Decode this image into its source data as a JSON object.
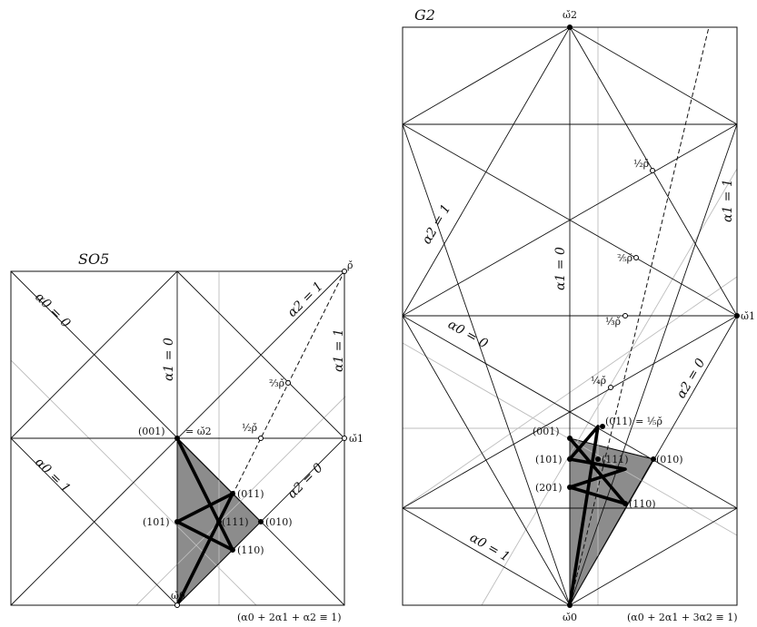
{
  "left_panel": {
    "title": "SO5",
    "lines": {
      "alpha0_0": "α0 = 0",
      "alpha0_1": "α0 = 1",
      "alpha1_0": "α1 = 0",
      "alpha1_1": "α1 = 1",
      "alpha2_1": "α2 = 1",
      "alpha2_0": "α2 = 0"
    },
    "points": {
      "p001": "(001)",
      "p101": "(101)",
      "p011": "(011)",
      "p111": "(111)",
      "p010": "(010)",
      "p110": "(110)"
    },
    "weights": {
      "eq_w2": "= ω̌2",
      "w1": "ω̌1",
      "w0": "ω̌0",
      "rho": "ρ̌",
      "half_rho": "½ρ̌",
      "two_thirds_rho": "⅔ρ̌"
    },
    "normalization": "(α0 + 2α1 + α2 ≡ 1)"
  },
  "right_panel": {
    "title": "G2",
    "lines": {
      "alpha2_1": "α2 = 1",
      "alpha1_1": "α1 = 1",
      "alpha1_0": "α1 = 0",
      "alpha0_0": "α0 = 0",
      "alpha2_0": "α2 = 0",
      "alpha0_1": "α0 = 1"
    },
    "points": {
      "p001": "(001)",
      "p011": "(011) = ⅕ρ̌",
      "p101": "(101)",
      "p111": "(111)",
      "p010": "(010)",
      "p201": "(201)",
      "p110": "(110)"
    },
    "weights": {
      "w2": "ω̌2",
      "w1": "ω̌1",
      "w0": "ω̌0",
      "half_rho": "½ρ̌",
      "two_fifths_rho": "⅖ρ̌",
      "third_rho": "⅓ρ̌",
      "quarter_rho": "¼ρ̌"
    },
    "normalization": "(α0 + 2α1 + 3α2 ≡ 1)"
  }
}
